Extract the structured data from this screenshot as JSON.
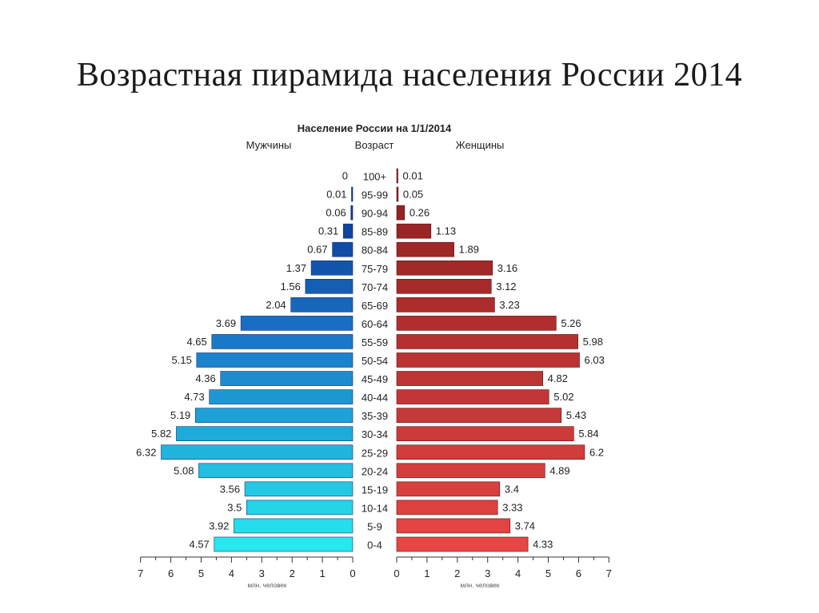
{
  "slide_title": "Возрастная пирамида населения России 2014",
  "chart_data": {
    "type": "bar",
    "orientation": "horizontal-pyramid",
    "title": "Население России на 1/1/2014",
    "left_label": "Мужчины",
    "center_label": "Возраст",
    "right_label": "Женщины",
    "unit_label": "млн. человек",
    "categories": [
      "100+",
      "95-99",
      "90-94",
      "85-89",
      "80-84",
      "75-79",
      "70-74",
      "65-69",
      "60-64",
      "55-59",
      "50-54",
      "45-49",
      "40-44",
      "35-39",
      "30-34",
      "25-29",
      "20-24",
      "15-19",
      "10-14",
      "5-9",
      "0-4"
    ],
    "series": [
      {
        "name": "Мужчины",
        "values": [
          0,
          0.01,
          0.06,
          0.31,
          0.67,
          1.37,
          1.56,
          2.04,
          3.69,
          4.65,
          5.15,
          4.36,
          4.73,
          5.19,
          5.82,
          6.32,
          5.08,
          3.56,
          3.5,
          3.92,
          4.57
        ],
        "value_labels": [
          "0",
          "0.01",
          "0.06",
          "0.31",
          "0.67",
          "1.37",
          "1.56",
          "2.04",
          "3.69",
          "4.65",
          "5.15",
          "4.36",
          "4.73",
          "5.19",
          "5.82",
          "6.32",
          "5.08",
          "3.56",
          "3.5",
          "3.92",
          "4.57"
        ]
      },
      {
        "name": "Женщины",
        "values": [
          0.01,
          0.05,
          0.26,
          1.13,
          1.89,
          3.16,
          3.12,
          3.23,
          5.26,
          5.98,
          6.03,
          4.82,
          5.02,
          5.43,
          5.84,
          6.2,
          4.89,
          3.4,
          3.33,
          3.74,
          4.33
        ],
        "value_labels": [
          "0.01",
          "0.05",
          "0.26",
          "1.13",
          "1.89",
          "3.16",
          "3.12",
          "3.23",
          "5.26",
          "5.98",
          "6.03",
          "4.82",
          "5.02",
          "5.43",
          "5.84",
          "6.2",
          "4.89",
          "3.4",
          "3.33",
          "3.74",
          "4.33"
        ]
      }
    ],
    "xlim": [
      0,
      7
    ],
    "x_ticks": [
      "0",
      "1",
      "2",
      "3",
      "4",
      "5",
      "6",
      "7"
    ],
    "colors": {
      "male_oldest": "#0a2a8c",
      "male_middle": "#1a78c8",
      "male_youngest": "#26e8ee",
      "female_oldest": "#8b1f1f",
      "female_youngest": "#e84545"
    },
    "grid": false
  }
}
